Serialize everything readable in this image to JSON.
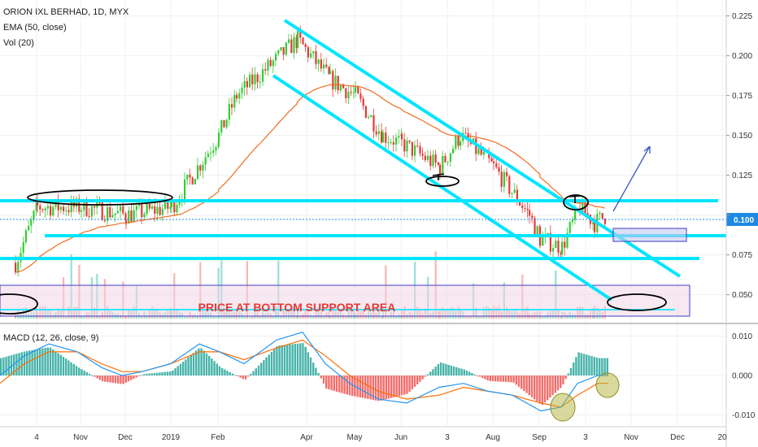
{
  "header": {
    "symbol_line": "ORION IXL BERHAD, 1D, MYX",
    "ema_line": "EMA (50, close)",
    "vol_line": "Vol (20)"
  },
  "macd": {
    "label": "MACD (12, 26, close, 9)"
  },
  "colors": {
    "up": "#32cd32",
    "down": "#e53935",
    "ema": "#f26b1d",
    "channel": "#00e5ff",
    "macd_line": "#2196f3",
    "signal_line": "#ff6d00",
    "hist_pos": "#26a69a",
    "hist_neg": "#ef5350",
    "annotation": "#e53935",
    "price_tag": "#1e88e5"
  },
  "annotation": {
    "text": "PRICE AT BOTTOM SUPPORT AREA"
  },
  "price_tag": {
    "text": "0.100"
  },
  "chart_data": [
    {
      "type": "candlestick",
      "title": "ORION IXL BERHAD, 1D, MYX",
      "y_axis_side": "right",
      "ylim": [
        0.035,
        0.235
      ],
      "y_ticks": [
        "0.225",
        "0.200",
        "0.175",
        "0.150",
        "0.125",
        "0.100",
        "0.075",
        "0.050"
      ],
      "x_ticks": [
        "4",
        "Nov",
        "Dec",
        "2019",
        "Feb",
        "Apr",
        "May",
        "Jun",
        "3",
        "Aug",
        "Sep",
        "3",
        "Nov",
        "Dec",
        "20"
      ],
      "last_price": 0.1,
      "ema_period": 50,
      "horizontal_levels": [
        0.112,
        0.09,
        0.075
      ],
      "price_path": [
        {
          "x": "4",
          "close": 0.07
        },
        {
          "x": "4",
          "close": 0.105
        },
        {
          "x": "Nov",
          "close": 0.105
        },
        {
          "x": "Dec",
          "close": 0.1
        },
        {
          "x": "2019",
          "close": 0.105
        },
        {
          "x": "Feb",
          "close": 0.15
        },
        {
          "x": "Feb",
          "close": 0.175
        },
        {
          "x": "Apr",
          "close": 0.21
        },
        {
          "x": "Apr",
          "close": 0.185
        },
        {
          "x": "May",
          "close": 0.175
        },
        {
          "x": "May",
          "close": 0.15
        },
        {
          "x": "Jun",
          "close": 0.145
        },
        {
          "x": "3",
          "close": 0.13
        },
        {
          "x": "3",
          "close": 0.15
        },
        {
          "x": "Aug",
          "close": 0.13
        },
        {
          "x": "Aug",
          "close": 0.1
        },
        {
          "x": "Sep",
          "close": 0.085
        },
        {
          "x": "Sep",
          "close": 0.08
        },
        {
          "x": "3",
          "close": 0.105
        },
        {
          "x": "3",
          "close": 0.095
        },
        {
          "x": "3",
          "close": 0.1
        }
      ]
    },
    {
      "type": "line",
      "title": "MACD (12, 26, close, 9)",
      "ylim": [
        -0.013,
        0.013
      ],
      "y_ticks": [
        "0.010",
        "0.000",
        "-0.010"
      ],
      "series": [
        {
          "name": "MACD",
          "values": [
            0.0,
            0.005,
            0.008,
            0.006,
            0.002,
            0.0,
            0.001,
            0.003,
            0.008,
            0.006,
            0.003,
            0.009,
            0.011,
            0.003,
            -0.002,
            -0.006,
            -0.007,
            -0.003,
            -0.002,
            -0.004,
            -0.005,
            -0.009,
            -0.008,
            -0.002,
            0.0,
            0.0
          ]
        },
        {
          "name": "Signal",
          "values": [
            -0.002,
            0.003,
            0.006,
            0.006,
            0.003,
            0.001,
            0.001,
            0.003,
            0.006,
            0.006,
            0.004,
            0.007,
            0.009,
            0.005,
            0.0,
            -0.004,
            -0.006,
            -0.005,
            -0.003,
            -0.004,
            -0.005,
            -0.007,
            -0.008,
            -0.005,
            -0.002,
            -0.002
          ]
        }
      ]
    }
  ]
}
